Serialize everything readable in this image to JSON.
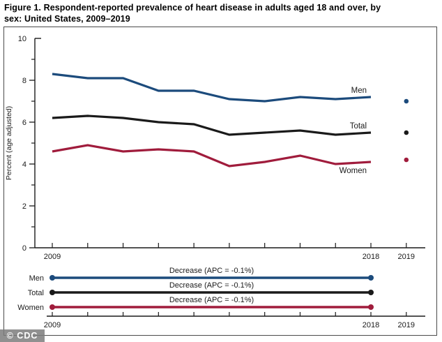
{
  "title": {
    "line1": "Figure 1. Respondent-reported prevalence of heart disease in adults aged 18 and over, by",
    "line2": "sex: United States, 2009–2019"
  },
  "watermark": "© CDC",
  "colors": {
    "men": "#1C4B7C",
    "total": "#1A1A1A",
    "women": "#A01C3C",
    "axis": "#1A1A1A",
    "border": "#4A4A4A"
  },
  "chart_data": {
    "type": "line",
    "title": "Figure 1. Respondent-reported prevalence of heart disease in adults aged 18 and over, by sex: United States, 2009–2019",
    "ylabel": "Percent (age adjusted)",
    "ylim": [
      0,
      10
    ],
    "yticks_major": [
      0,
      2,
      4,
      6,
      8,
      10
    ],
    "yticks_minor": [
      1,
      3,
      5,
      7,
      9
    ],
    "grid": false,
    "x": [
      2009,
      2010,
      2011,
      2012,
      2013,
      2014,
      2015,
      2016,
      2017,
      2018
    ],
    "xticks": [
      2009,
      2010,
      2011,
      2012,
      2013,
      2014,
      2015,
      2016,
      2017,
      2018,
      2019
    ],
    "xtick_labels": [
      {
        "x": 2009,
        "text": "2009"
      },
      {
        "x": 2018,
        "text": "2018"
      },
      {
        "x": 2019,
        "text": "2019"
      }
    ],
    "series": [
      {
        "name": "Men",
        "color": "#1C4B7C",
        "values": [
          8.3,
          8.1,
          8.1,
          7.5,
          7.5,
          7.1,
          7.0,
          7.2,
          7.1,
          7.2
        ],
        "point_2019": 7.0,
        "label_position": "above"
      },
      {
        "name": "Total",
        "color": "#1A1A1A",
        "values": [
          6.2,
          6.3,
          6.2,
          6.0,
          5.9,
          5.4,
          5.5,
          5.6,
          5.4,
          5.5
        ],
        "point_2019": 5.5,
        "label_position": "above"
      },
      {
        "name": "Women",
        "color": "#A01C3C",
        "values": [
          4.6,
          4.9,
          4.6,
          4.7,
          4.6,
          3.9,
          4.1,
          4.4,
          4.0,
          4.1
        ],
        "point_2019": 4.2,
        "label_position": "below"
      }
    ],
    "trend_summary": {
      "rows": [
        {
          "label": "Men",
          "annotation": "Decrease (APC = -0.1%)",
          "color": "#1C4B7C",
          "span": [
            2009,
            2018
          ]
        },
        {
          "label": "Total",
          "annotation": "Decrease (APC = -0.1%)",
          "color": "#1A1A1A",
          "span": [
            2009,
            2018
          ]
        },
        {
          "label": "Women",
          "annotation": "Decrease (APC = -0.1%)",
          "color": "#A01C3C",
          "span": [
            2009,
            2018
          ]
        }
      ],
      "xticks": [
        2009,
        2010,
        2011,
        2012,
        2013,
        2014,
        2015,
        2016,
        2017,
        2018,
        2019
      ],
      "xtick_labels": [
        {
          "x": 2009,
          "text": "2009"
        },
        {
          "x": 2018,
          "text": "2018"
        },
        {
          "x": 2019,
          "text": "2019"
        }
      ]
    }
  }
}
